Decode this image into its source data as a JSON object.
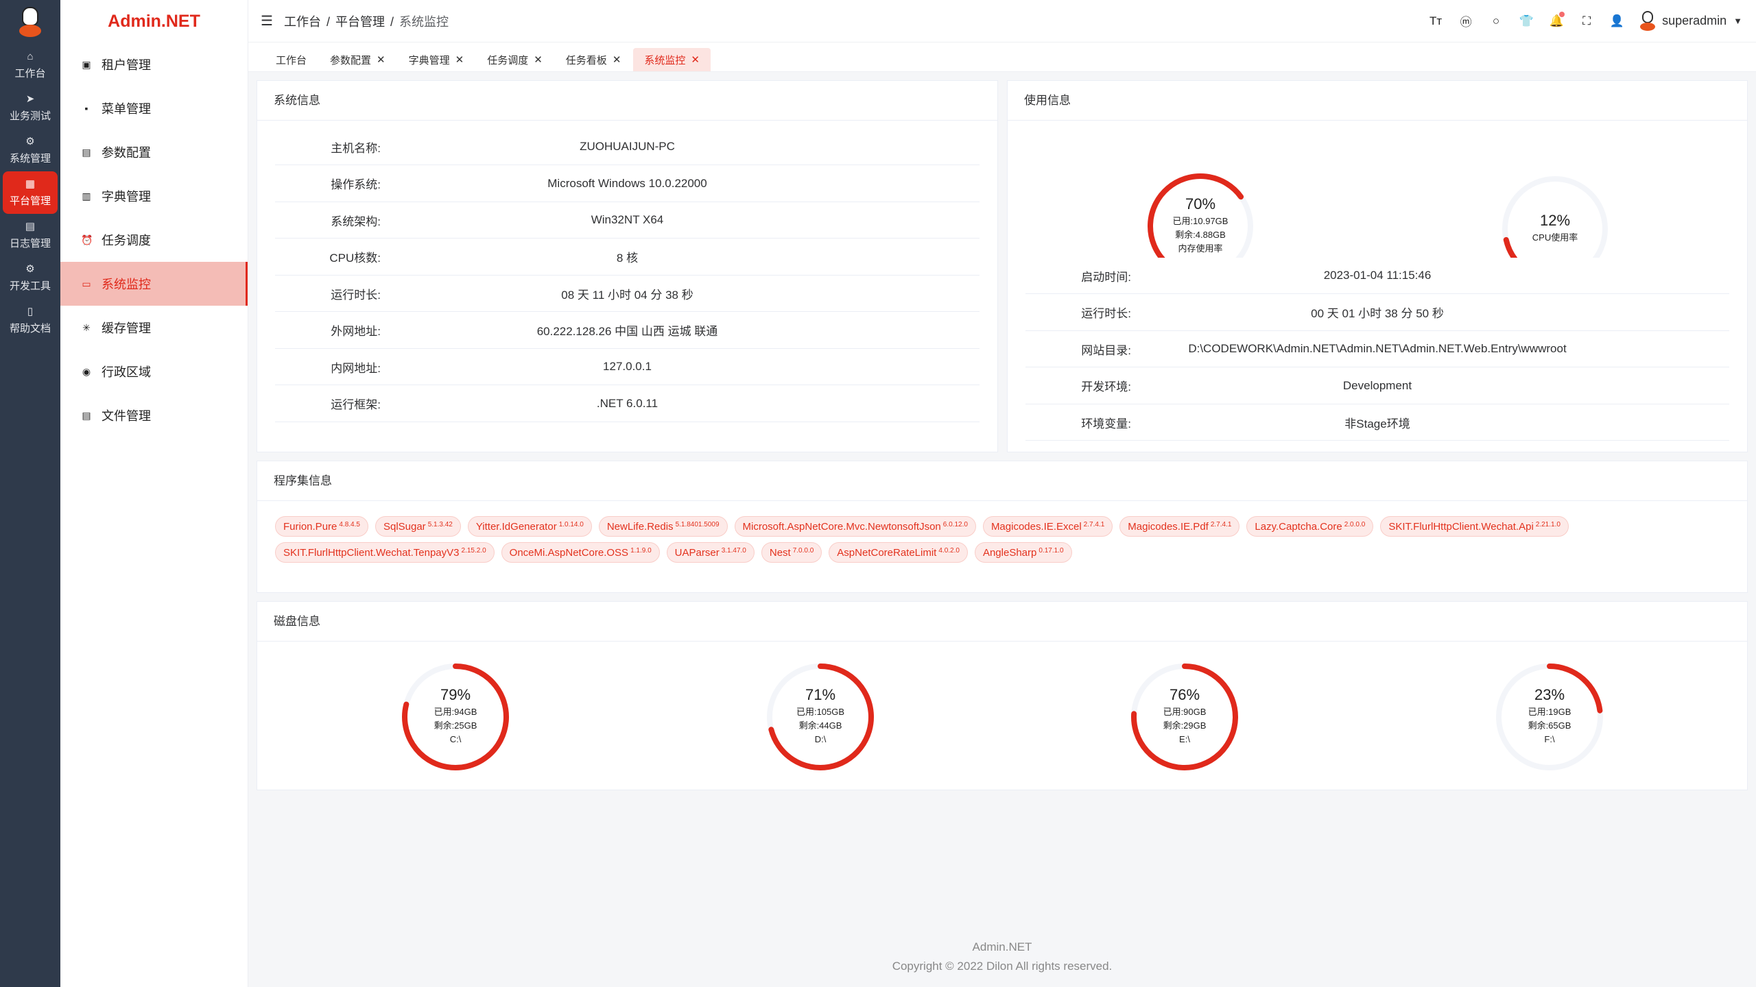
{
  "colors": {
    "accent": "#e0291b",
    "track": "#f3f5f9",
    "rail": "#2f3a4b"
  },
  "rail": [
    {
      "icon": "home-icon",
      "glyph": "⌂",
      "label": "工作台"
    },
    {
      "icon": "send-icon",
      "glyph": "➤",
      "label": "业务测试"
    },
    {
      "icon": "gear-icon",
      "glyph": "⚙",
      "label": "系统管理"
    },
    {
      "icon": "grid-icon",
      "glyph": "▦",
      "label": "平台管理",
      "active": true
    },
    {
      "icon": "log-icon",
      "glyph": "▤",
      "label": "日志管理"
    },
    {
      "icon": "chip-icon",
      "glyph": "⚙",
      "label": "开发工具"
    },
    {
      "icon": "book-icon",
      "glyph": "▯",
      "label": "帮助文档"
    }
  ],
  "brand": "Admin.NET",
  "submenu": [
    {
      "icon": "tenant-icon",
      "glyph": "▣",
      "label": "租户管理"
    },
    {
      "icon": "menu-grid-icon",
      "glyph": "▪",
      "label": "菜单管理"
    },
    {
      "icon": "config-icon",
      "glyph": "▤",
      "label": "参数配置"
    },
    {
      "icon": "dictionary-icon",
      "glyph": "▥",
      "label": "字典管理"
    },
    {
      "icon": "alarm-clock-icon",
      "glyph": "⏰",
      "label": "任务调度"
    },
    {
      "icon": "monitor-icon",
      "glyph": "▭",
      "label": "系统监控",
      "active": true
    },
    {
      "icon": "cache-icon",
      "glyph": "✳",
      "label": "缓存管理"
    },
    {
      "icon": "location-icon",
      "glyph": "◉",
      "label": "行政区域"
    },
    {
      "icon": "file-icon",
      "glyph": "▤",
      "label": "文件管理"
    }
  ],
  "header": {
    "breadcrumb": [
      "工作台",
      "平台管理",
      "系统监控"
    ],
    "separator": "/",
    "tools": [
      {
        "icon": "font-size-icon",
        "glyph": "Tт"
      },
      {
        "icon": "language-icon",
        "glyph": "ⓜ"
      },
      {
        "icon": "search-icon",
        "glyph": "○"
      },
      {
        "icon": "theme-shirt-icon",
        "glyph": "👕"
      },
      {
        "icon": "bell-icon",
        "glyph": "🔔",
        "badge": true
      },
      {
        "icon": "fullscreen-icon",
        "glyph": "⛶"
      },
      {
        "icon": "user-icon",
        "glyph": "👤"
      }
    ],
    "username": "superadmin"
  },
  "tabs": [
    {
      "label": "工作台",
      "closable": false
    },
    {
      "label": "参数配置",
      "closable": true
    },
    {
      "label": "字典管理",
      "closable": true
    },
    {
      "label": "任务调度",
      "closable": true
    },
    {
      "label": "任务看板",
      "closable": true
    },
    {
      "label": "系统监控",
      "closable": true,
      "active": true
    }
  ],
  "sysinfo": {
    "title": "系统信息",
    "rows": [
      [
        "主机名称:",
        "ZUOHUAIJUN-PC"
      ],
      [
        "操作系统:",
        "Microsoft Windows 10.0.22000"
      ],
      [
        "系统架构:",
        "Win32NT X64"
      ],
      [
        "CPU核数:",
        "8 核"
      ],
      [
        "运行时长:",
        "08 天 11 小时 04 分 38 秒"
      ],
      [
        "外网地址:",
        "60.222.128.26 中国 山西 运城 联通"
      ],
      [
        "内网地址:",
        "127.0.0.1"
      ],
      [
        "运行框架:",
        ".NET 6.0.11"
      ]
    ]
  },
  "usage": {
    "title": "使用信息",
    "memory": {
      "percent": 70,
      "used": "已用:10.97GB",
      "free": "剩余:4.88GB",
      "label": "内存使用率"
    },
    "cpu": {
      "percent": 12,
      "label": "CPU使用率"
    },
    "rows": [
      [
        "启动时间:",
        "2023-01-04 11:15:46"
      ],
      [
        "运行时长:",
        "00 天 01 小时 38 分 50 秒"
      ],
      [
        "网站目录:",
        "D:\\CODEWORK\\Admin.NET\\Admin.NET\\Admin.NET.Web.Entry\\wwwroot"
      ],
      [
        "开发环境:",
        "Development"
      ],
      [
        "环境变量:",
        "非Stage环境"
      ]
    ]
  },
  "assemblies": {
    "title": "程序集信息",
    "items": [
      [
        "Furion.Pure",
        "4.8.4.5"
      ],
      [
        "SqlSugar",
        "5.1.3.42"
      ],
      [
        "Yitter.IdGenerator",
        "1.0.14.0"
      ],
      [
        "NewLife.Redis",
        "5.1.8401.5009"
      ],
      [
        "Microsoft.AspNetCore.Mvc.NewtonsoftJson",
        "6.0.12.0"
      ],
      [
        "Magicodes.IE.Excel",
        "2.7.4.1"
      ],
      [
        "Magicodes.IE.Pdf",
        "2.7.4.1"
      ],
      [
        "Lazy.Captcha.Core",
        "2.0.0.0"
      ],
      [
        "SKIT.FlurlHttpClient.Wechat.Api",
        "2.21.1.0"
      ],
      [
        "SKIT.FlurlHttpClient.Wechat.TenpayV3",
        "2.15.2.0"
      ],
      [
        "OnceMi.AspNetCore.OSS",
        "1.1.9.0"
      ],
      [
        "UAParser",
        "3.1.47.0"
      ],
      [
        "Nest",
        "7.0.0.0"
      ],
      [
        "AspNetCoreRateLimit",
        "4.0.2.0"
      ],
      [
        "AngleSharp",
        "0.17.1.0"
      ]
    ]
  },
  "disks": {
    "title": "磁盘信息",
    "items": [
      {
        "percent": 79,
        "used": "已用:94GB",
        "free": "剩余:25GB",
        "name": "C:\\"
      },
      {
        "percent": 71,
        "used": "已用:105GB",
        "free": "剩余:44GB",
        "name": "D:\\"
      },
      {
        "percent": 76,
        "used": "已用:90GB",
        "free": "剩余:29GB",
        "name": "E:\\"
      },
      {
        "percent": 23,
        "used": "已用:19GB",
        "free": "剩余:65GB",
        "name": "F:\\"
      }
    ]
  },
  "footer": {
    "line1": "Admin.NET",
    "line2": "Copyright © 2022 Dilon All rights reserved."
  }
}
